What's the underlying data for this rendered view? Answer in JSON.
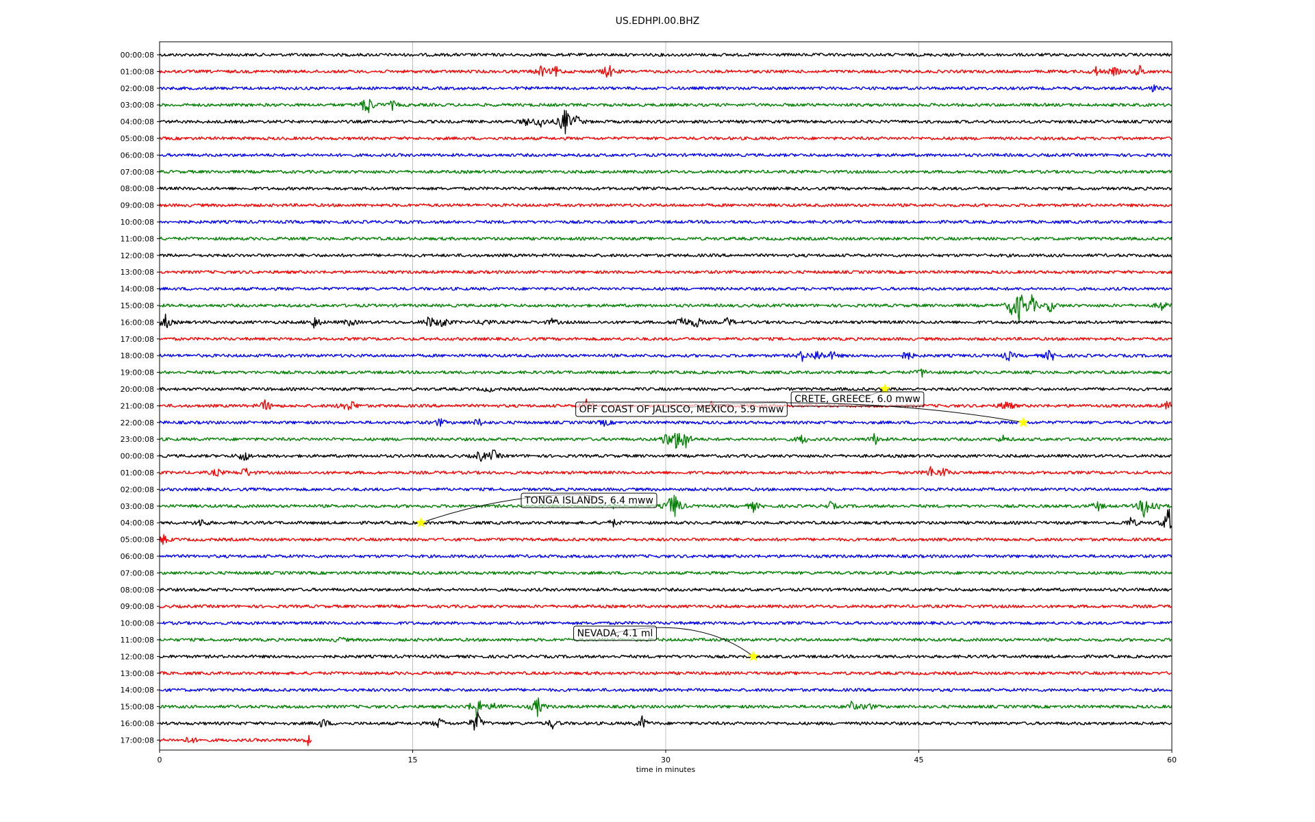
{
  "chart_data": {
    "type": "line",
    "title": "US.EDHPI.00.BHZ",
    "xlabel": "time in minutes",
    "ylabel": "",
    "xlim": [
      0,
      60
    ],
    "x_ticks": [
      "0",
      "15",
      "30",
      "45",
      "60"
    ],
    "grid": "vertical",
    "trace_colors": [
      "#000000",
      "#ff0000",
      "#0000ff",
      "#008000"
    ],
    "row_labels": [
      "00:00:08",
      "01:00:08",
      "02:00:08",
      "03:00:08",
      "04:00:08",
      "05:00:08",
      "06:00:08",
      "07:00:08",
      "08:00:08",
      "09:00:08",
      "10:00:08",
      "11:00:08",
      "12:00:08",
      "13:00:08",
      "14:00:08",
      "15:00:08",
      "16:00:08",
      "17:00:08",
      "18:00:08",
      "19:00:08",
      "20:00:08",
      "21:00:08",
      "22:00:08",
      "23:00:08",
      "00:00:08",
      "01:00:08",
      "02:00:08",
      "03:00:08",
      "04:00:08",
      "05:00:08",
      "06:00:08",
      "07:00:08",
      "08:00:08",
      "09:00:08",
      "10:00:08",
      "11:00:08",
      "12:00:08",
      "13:00:08",
      "14:00:08",
      "15:00:08",
      "16:00:08",
      "17:00:08"
    ],
    "last_row_end_minute": 9.0,
    "bursts": [
      {
        "row": 1,
        "minute": 22.6,
        "amp": 0.7
      },
      {
        "row": 1,
        "minute": 23.5,
        "amp": 0.6
      },
      {
        "row": 1,
        "minute": 26.6,
        "amp": 1.0
      },
      {
        "row": 1,
        "minute": 55.5,
        "amp": 0.5
      },
      {
        "row": 1,
        "minute": 56.6,
        "amp": 0.5
      },
      {
        "row": 1,
        "minute": 58.1,
        "amp": 0.7
      },
      {
        "row": 2,
        "minute": 58.9,
        "amp": 0.4
      },
      {
        "row": 3,
        "minute": 12.3,
        "amp": 1.6
      },
      {
        "row": 3,
        "minute": 13.8,
        "amp": 0.5
      },
      {
        "row": 4,
        "minute": 21.8,
        "amp": 0.6
      },
      {
        "row": 4,
        "minute": 22.6,
        "amp": 0.8
      },
      {
        "row": 4,
        "minute": 24.0,
        "amp": 2.0
      },
      {
        "row": 4,
        "minute": 24.7,
        "amp": 0.8
      },
      {
        "row": 15,
        "minute": 50.5,
        "amp": 1.0
      },
      {
        "row": 15,
        "minute": 51.0,
        "amp": 2.2
      },
      {
        "row": 15,
        "minute": 51.7,
        "amp": 1.2
      },
      {
        "row": 15,
        "minute": 52.8,
        "amp": 0.8
      },
      {
        "row": 15,
        "minute": 59.4,
        "amp": 0.6
      },
      {
        "row": 16,
        "minute": 0.3,
        "amp": 1.1
      },
      {
        "row": 16,
        "minute": 9.2,
        "amp": 0.8
      },
      {
        "row": 16,
        "minute": 11.3,
        "amp": 0.5
      },
      {
        "row": 16,
        "minute": 16.0,
        "amp": 0.8
      },
      {
        "row": 16,
        "minute": 16.8,
        "amp": 0.8
      },
      {
        "row": 16,
        "minute": 19.3,
        "amp": 0.5
      },
      {
        "row": 16,
        "minute": 23.3,
        "amp": 0.4
      },
      {
        "row": 16,
        "minute": 30.9,
        "amp": 1.0
      },
      {
        "row": 16,
        "minute": 31.8,
        "amp": 0.8
      },
      {
        "row": 16,
        "minute": 33.7,
        "amp": 0.6
      },
      {
        "row": 18,
        "minute": 38.1,
        "amp": 0.6
      },
      {
        "row": 18,
        "minute": 39.0,
        "amp": 0.8
      },
      {
        "row": 18,
        "minute": 39.9,
        "amp": 0.5
      },
      {
        "row": 18,
        "minute": 44.3,
        "amp": 0.7
      },
      {
        "row": 18,
        "minute": 50.3,
        "amp": 0.6
      },
      {
        "row": 18,
        "minute": 52.8,
        "amp": 0.8
      },
      {
        "row": 19,
        "minute": 45.2,
        "amp": 0.5
      },
      {
        "row": 20,
        "minute": 19.5,
        "amp": 0.3
      },
      {
        "row": 21,
        "minute": 6.3,
        "amp": 0.8
      },
      {
        "row": 21,
        "minute": 10.9,
        "amp": 0.5
      },
      {
        "row": 21,
        "minute": 11.4,
        "amp": 0.6
      },
      {
        "row": 21,
        "minute": 25.3,
        "amp": 0.7
      },
      {
        "row": 21,
        "minute": 32.7,
        "amp": 0.4
      },
      {
        "row": 21,
        "minute": 50.2,
        "amp": 0.9
      },
      {
        "row": 21,
        "minute": 59.8,
        "amp": 0.6
      },
      {
        "row": 22,
        "minute": 16.6,
        "amp": 0.5
      },
      {
        "row": 22,
        "minute": 18.9,
        "amp": 0.5
      },
      {
        "row": 22,
        "minute": 26.4,
        "amp": 0.4
      },
      {
        "row": 23,
        "minute": 30.0,
        "amp": 0.8
      },
      {
        "row": 23,
        "minute": 30.6,
        "amp": 1.0
      },
      {
        "row": 23,
        "minute": 31.1,
        "amp": 1.6
      },
      {
        "row": 23,
        "minute": 38.1,
        "amp": 0.6
      },
      {
        "row": 23,
        "minute": 42.4,
        "amp": 0.7
      },
      {
        "row": 23,
        "minute": 50.0,
        "amp": 0.4
      },
      {
        "row": 24,
        "minute": 5.0,
        "amp": 0.8
      },
      {
        "row": 24,
        "minute": 19.0,
        "amp": 0.7
      },
      {
        "row": 24,
        "minute": 19.8,
        "amp": 0.7
      },
      {
        "row": 25,
        "minute": 3.4,
        "amp": 0.5
      },
      {
        "row": 25,
        "minute": 5.1,
        "amp": 0.7
      },
      {
        "row": 25,
        "minute": 45.7,
        "amp": 0.7
      },
      {
        "row": 25,
        "minute": 46.5,
        "amp": 0.6
      },
      {
        "row": 27,
        "minute": 26.7,
        "amp": 0.6
      },
      {
        "row": 27,
        "minute": 30.3,
        "amp": 1.0
      },
      {
        "row": 27,
        "minute": 30.6,
        "amp": 1.4
      },
      {
        "row": 27,
        "minute": 35.2,
        "amp": 0.6
      },
      {
        "row": 27,
        "minute": 39.8,
        "amp": 0.5
      },
      {
        "row": 27,
        "minute": 55.6,
        "amp": 0.6
      },
      {
        "row": 27,
        "minute": 58.4,
        "amp": 1.8
      },
      {
        "row": 27,
        "minute": 59.1,
        "amp": 0.6
      },
      {
        "row": 28,
        "minute": 2.5,
        "amp": 0.6
      },
      {
        "row": 28,
        "minute": 26.9,
        "amp": 0.4
      },
      {
        "row": 28,
        "minute": 57.6,
        "amp": 0.7
      },
      {
        "row": 28,
        "minute": 59.8,
        "amp": 1.9
      },
      {
        "row": 29,
        "minute": 0.2,
        "amp": 0.6
      },
      {
        "row": 35,
        "minute": 10.7,
        "amp": 0.3
      },
      {
        "row": 39,
        "minute": 18.8,
        "amp": 2.0
      },
      {
        "row": 39,
        "minute": 20.0,
        "amp": 0.7
      },
      {
        "row": 39,
        "minute": 22.4,
        "amp": 1.3
      },
      {
        "row": 39,
        "minute": 41.0,
        "amp": 0.6
      },
      {
        "row": 39,
        "minute": 42.0,
        "amp": 0.5
      },
      {
        "row": 40,
        "minute": 9.7,
        "amp": 0.6
      },
      {
        "row": 40,
        "minute": 16.6,
        "amp": 0.7
      },
      {
        "row": 40,
        "minute": 18.8,
        "amp": 1.6
      },
      {
        "row": 40,
        "minute": 23.3,
        "amp": 0.6
      },
      {
        "row": 40,
        "minute": 28.6,
        "amp": 0.8
      },
      {
        "row": 41,
        "minute": 1.8,
        "amp": 0.5
      },
      {
        "row": 41,
        "minute": 8.8,
        "amp": 0.5
      }
    ],
    "events": [
      {
        "label": "CRETE, GREECE, 6.0 mww",
        "row": 20,
        "minute": 43.0
      },
      {
        "label": "OFF COAST OF JALISCO, MEXICO, 5.9 mww",
        "row": 22,
        "minute": 51.2
      },
      {
        "label": "TONGA ISLANDS, 6.4 mww",
        "row": 28,
        "minute": 15.5
      },
      {
        "label": "NEVADA, 4.1 ml",
        "row": 36,
        "minute": 35.2
      }
    ]
  }
}
